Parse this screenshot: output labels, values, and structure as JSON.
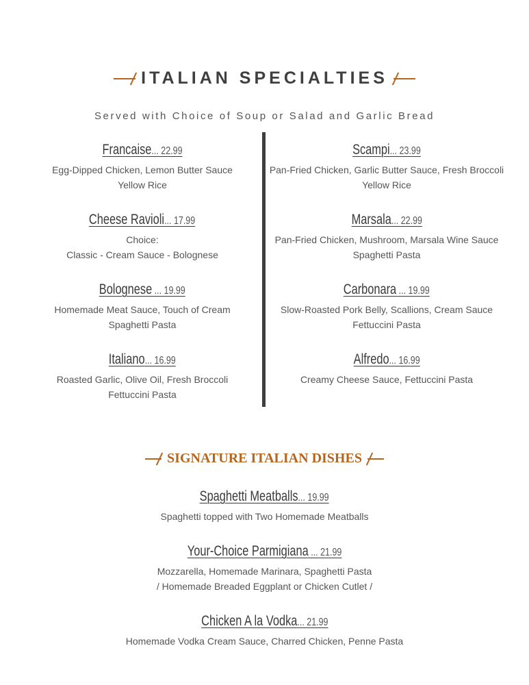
{
  "header": {
    "title": "ITALIAN SPECIALTIES",
    "subtitle": "Served with Choice of Soup or Salad and Garlic Bread"
  },
  "left": [
    {
      "name": "Francaise",
      "price": "... 22.99",
      "lines": [
        "Egg-Dipped Chicken, Lemon Butter Sauce",
        "Yellow Rice"
      ]
    },
    {
      "name": "Cheese Ravioli",
      "price": "... 17.99",
      "lines": [
        "Choice:",
        "Classic - Cream Sauce - Bolognese"
      ]
    },
    {
      "name": "Bolognese",
      "price": " ... 19.99",
      "lines": [
        "Homemade Meat Sauce, Touch of Cream",
        "Spaghetti Pasta"
      ]
    },
    {
      "name": "Italiano",
      "price": "... 16.99",
      "lines": [
        "Roasted Garlic, Olive Oil, Fresh Broccoli",
        "Fettuccini Pasta"
      ]
    }
  ],
  "right": [
    {
      "name": "Scampi",
      "price": "... 23.99",
      "lines": [
        "Pan-Fried Chicken, Garlic Butter Sauce, Fresh Broccoli",
        "Yellow Rice"
      ]
    },
    {
      "name": "Marsala",
      "price": "... 22.99",
      "lines": [
        "Pan-Fried Chicken, Mushroom, Marsala Wine Sauce",
        "Spaghetti Pasta"
      ]
    },
    {
      "name": "Carbonara",
      "price": " ... 19.99",
      "lines": [
        "Slow-Roasted Pork Belly, Scallions, Cream Sauce",
        "Fettuccini Pasta"
      ]
    },
    {
      "name": "Alfredo",
      "price": "... 16.99",
      "lines": [
        "Creamy Cheese Sauce, Fettuccini Pasta",
        ""
      ]
    }
  ],
  "signature": {
    "title": "SIGNATURE ITALIAN DISHES",
    "items": [
      {
        "name": "Spaghetti Meatballs",
        "price": "... 19.99",
        "lines": [
          "Spaghetti topped with Two Homemade Meatballs",
          ""
        ]
      },
      {
        "name": "Your-Choice Parmigiana",
        "price": " ... 21.99",
        "lines": [
          "Mozzarella, Homemade Marinara, Spaghetti Pasta",
          "/ Homemade Breaded Eggplant or Chicken Cutlet /"
        ]
      },
      {
        "name": "Chicken A la Vodka",
        "price": "... 21.99",
        "lines": [
          "Homemade Vodka Cream Sauce, Charred Chicken, Penne Pasta",
          ""
        ]
      }
    ]
  },
  "colors": {
    "accent": "#b5651d",
    "text": "#444444",
    "divider": "#3f3f3f"
  }
}
